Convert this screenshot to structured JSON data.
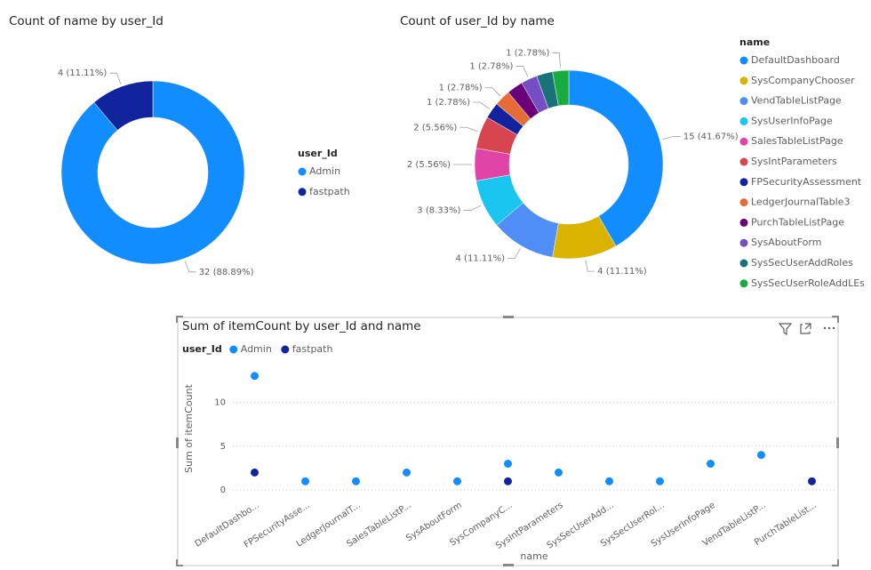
{
  "chart_data": [
    {
      "type": "donut",
      "title": "Count of name by user_Id",
      "legend_title": "user_Id",
      "categories": [
        "Admin",
        "fastpath"
      ],
      "values": [
        32,
        4
      ],
      "value_labels": [
        "32 (88.89%)",
        "4 (11.11%)"
      ],
      "colors": [
        "#118dff",
        "#12239e"
      ]
    },
    {
      "type": "donut",
      "title": "Count of user_Id by name",
      "legend_title": "name",
      "categories": [
        "DefaultDashboard",
        "SysCompanyChooser",
        "VendTableListPage",
        "SysUserInfoPage",
        "SalesTableListPage",
        "SysIntParameters",
        "FPSecurityAssessment",
        "LedgerJournalTable3",
        "PurchTableListPage",
        "SysAboutForm",
        "SysSecUserAddRoles",
        "SysSecUserRoleAddLEs"
      ],
      "values": [
        15,
        4,
        4,
        3,
        2,
        2,
        1,
        1,
        1,
        1,
        1,
        1
      ],
      "value_labels": [
        "15 (41.67%)",
        "4 (11.11%)",
        "4 (11.11%)",
        "3 (8.33%)",
        "2 (5.56%)",
        "2 (5.56%)",
        "1 (2.78%)",
        "1 (2.78%)",
        null,
        "1 (2.78%)",
        null,
        "1 (2.78%)"
      ],
      "colors": [
        "#118dff",
        "#d9b300",
        "#4f8ef7",
        "#1ac6f0",
        "#e044a7",
        "#d64550",
        "#12239e",
        "#e66c37",
        "#6b007b",
        "#744ec2",
        "#197278",
        "#1aab40"
      ]
    },
    {
      "type": "scatter",
      "title": "Sum of itemCount by user_Id and name",
      "legend_title": "user_Id",
      "xlabel": "name",
      "ylabel": "Sum of itemCount",
      "categories": [
        "DefaultDashbo...",
        "FPSecurityAsse...",
        "LedgerJournalT...",
        "SalesTableListP...",
        "SysAboutForm",
        "SysCompanyC...",
        "SysIntParameters",
        "SysSecUserAdd...",
        "SysSecUserRol...",
        "SysUserInfoPage",
        "VendTableListP...",
        "PurchTableList..."
      ],
      "series": [
        {
          "name": "Admin",
          "color": "#118dff",
          "values": [
            13,
            1,
            1,
            2,
            1,
            3,
            2,
            1,
            1,
            3,
            4,
            null
          ]
        },
        {
          "name": "fastpath",
          "color": "#12239e",
          "values": [
            2,
            null,
            null,
            null,
            null,
            1,
            null,
            null,
            null,
            null,
            null,
            1
          ]
        }
      ],
      "ylim": [
        -1,
        15
      ],
      "yticks": [
        0,
        5,
        10
      ],
      "grid": true
    }
  ]
}
